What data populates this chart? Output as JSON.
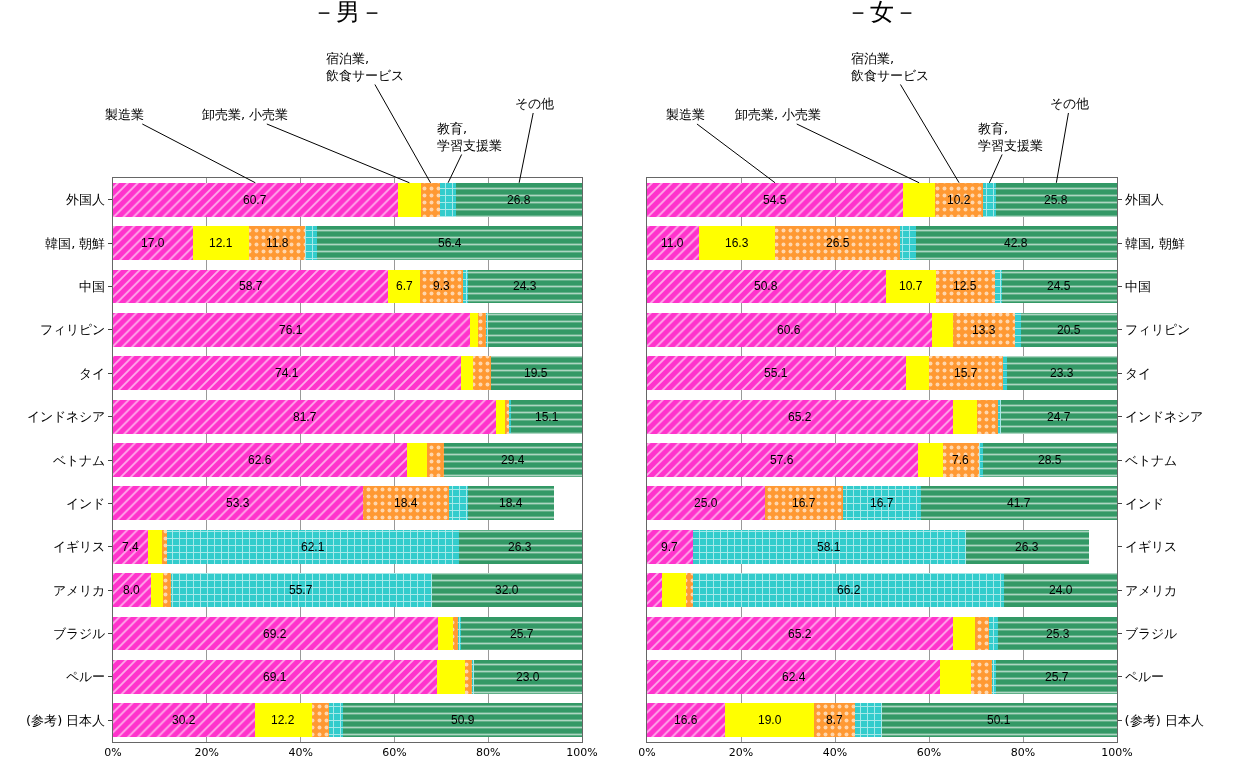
{
  "chart_data": [
    {
      "type": "bar",
      "orientation": "horizontal",
      "stacked": true,
      "title": "－男－",
      "categories": [
        "外国人",
        "韓国, 朝鮮",
        "中国",
        "フィリピン",
        "タイ",
        "インドネシア",
        "ベトナム",
        "インド",
        "イギリス",
        "アメリカ",
        "ブラジル",
        "ペルー",
        "(参考) 日本人"
      ],
      "series": [
        {
          "name": "製造業",
          "color": "#ff33cc",
          "values": [
            60.7,
            17.0,
            58.7,
            76.1,
            74.1,
            81.7,
            62.6,
            53.3,
            7.4,
            8.0,
            69.2,
            69.1,
            30.2
          ],
          "value_labels": [
            "60.7",
            "17.0",
            "58.7",
            "76.1",
            "74.1",
            "81.7",
            "62.6",
            "53.3",
            "7.4",
            "8.0",
            "69.2",
            "69.1",
            "30.2"
          ]
        },
        {
          "name": "卸売業, 小売業",
          "color": "#ffff00",
          "values": [
            5.0,
            12.1,
            6.7,
            1.8,
            2.7,
            1.8,
            4.3,
            0,
            3.0,
            2.7,
            3.3,
            6.0,
            12.2
          ],
          "value_labels": [
            null,
            "12.1",
            "6.7",
            null,
            null,
            null,
            null,
            null,
            null,
            null,
            null,
            null,
            "12.2"
          ]
        },
        {
          "name": "宿泊業, 飲食サービス",
          "color": "#ff9933",
          "values": [
            4.0,
            11.8,
            9.3,
            1.8,
            3.7,
            1.1,
            3.6,
            18.4,
            1.2,
            1.6,
            1.0,
            1.4,
            3.7
          ],
          "value_labels": [
            null,
            "11.8",
            "9.3",
            null,
            null,
            null,
            null,
            "18.4",
            null,
            null,
            null,
            null,
            null
          ]
        },
        {
          "name": "教育, 学習支援業",
          "color": "#33cccc",
          "values": [
            3.5,
            2.7,
            1.0,
            0.3,
            0,
            0.3,
            null,
            3.9,
            62.1,
            55.7,
            0.8,
            0.5,
            3.0
          ],
          "value_labels": [
            null,
            null,
            null,
            null,
            null,
            null,
            null,
            null,
            "62.1",
            "55.7",
            null,
            null,
            null
          ]
        },
        {
          "name": "その他",
          "color": "#339966",
          "values": [
            26.8,
            56.4,
            24.3,
            20.0,
            19.5,
            15.1,
            29.4,
            18.4,
            26.3,
            32.0,
            25.7,
            23.0,
            50.9
          ],
          "value_labels": [
            "26.8",
            "56.4",
            "24.3",
            null,
            "19.5",
            "15.1",
            "29.4",
            "18.4",
            "26.3",
            "32.0",
            "25.7",
            "23.0",
            "50.9"
          ]
        }
      ],
      "xlim": [
        0,
        100
      ],
      "xticks": [
        {
          "value": 0,
          "label": "0%"
        },
        {
          "value": 20,
          "label": "20%"
        },
        {
          "value": 40,
          "label": "40%"
        },
        {
          "value": 60,
          "label": "60%"
        },
        {
          "value": 80,
          "label": "80%"
        },
        {
          "value": 100,
          "label": "100%"
        }
      ],
      "grid": "x",
      "legend": false
    },
    {
      "type": "bar",
      "orientation": "horizontal",
      "stacked": true,
      "title": "－女－",
      "categories": [
        "外国人",
        "韓国, 朝鮮",
        "中国",
        "フィリピン",
        "タイ",
        "インドネシア",
        "ベトナム",
        "インド",
        "イギリス",
        "アメリカ",
        "ブラジル",
        "ペルー",
        "(参考) 日本人"
      ],
      "series": [
        {
          "name": "製造業",
          "color": "#ff33cc",
          "values": [
            54.5,
            11.0,
            50.8,
            60.6,
            55.1,
            65.2,
            57.6,
            25.0,
            9.7,
            3.1,
            65.2,
            62.4,
            16.6
          ],
          "value_labels": [
            "54.5",
            "11.0",
            "50.8",
            "60.6",
            "55.1",
            "65.2",
            "57.6",
            "25.0",
            "9.7",
            null,
            "65.2",
            "62.4",
            "16.6"
          ]
        },
        {
          "name": "卸売業, 小売業",
          "color": "#ffff00",
          "values": [
            6.8,
            16.3,
            10.7,
            4.5,
            4.9,
            5.1,
            5.4,
            0,
            0,
            5.2,
            4.6,
            6.5,
            19.0
          ],
          "value_labels": [
            null,
            "16.3",
            "10.7",
            null,
            null,
            null,
            null,
            null,
            null,
            null,
            null,
            null,
            "19.0"
          ]
        },
        {
          "name": "宿泊業, 飲食サービス",
          "color": "#ff9933",
          "values": [
            10.2,
            26.5,
            12.5,
            13.3,
            15.7,
            4.3,
            7.6,
            16.7,
            0,
            1.5,
            3.0,
            4.6,
            8.7
          ],
          "value_labels": [
            "10.2",
            "26.5",
            "12.5",
            "13.3",
            "15.7",
            null,
            "7.6",
            "16.7",
            null,
            null,
            null,
            null,
            "8.7"
          ]
        },
        {
          "name": "教育, 学習支援業",
          "color": "#33cccc",
          "values": [
            2.7,
            3.4,
            1.5,
            1.1,
            1.0,
            0.7,
            0.9,
            16.7,
            58.1,
            66.2,
            1.9,
            0.8,
            5.6
          ],
          "value_labels": [
            null,
            null,
            null,
            null,
            null,
            null,
            null,
            "16.7",
            "58.1",
            "66.2",
            null,
            null,
            null
          ]
        },
        {
          "name": "その他",
          "color": "#339966",
          "values": [
            25.8,
            42.8,
            24.5,
            20.5,
            23.3,
            24.7,
            28.5,
            41.7,
            26.3,
            24.0,
            25.3,
            25.7,
            50.1
          ],
          "value_labels": [
            "25.8",
            "42.8",
            "24.5",
            "20.5",
            "23.3",
            "24.7",
            "28.5",
            "41.7",
            "26.3",
            "24.0",
            "25.3",
            "25.7",
            "50.1"
          ]
        }
      ],
      "xlim": [
        0,
        100
      ],
      "xticks": [
        {
          "value": 0,
          "label": "0%"
        },
        {
          "value": 20,
          "label": "20%"
        },
        {
          "value": 40,
          "label": "40%"
        },
        {
          "value": 60,
          "label": "60%"
        },
        {
          "value": 80,
          "label": "80%"
        },
        {
          "value": 100,
          "label": "100%"
        }
      ],
      "grid": "x",
      "legend": false
    }
  ]
}
